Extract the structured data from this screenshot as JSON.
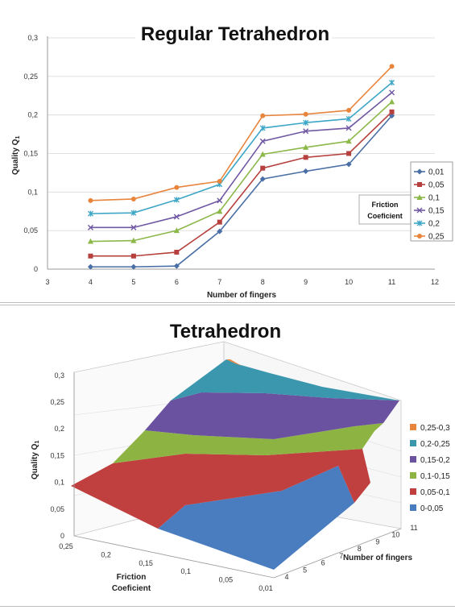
{
  "chart_data": [
    {
      "type": "line",
      "title": "Regular Tetrahedron",
      "xlabel": "Number of fingers",
      "ylabel": "Quality Q",
      "ylabel_sub": "1",
      "xlim": [
        3,
        12
      ],
      "ylim": [
        0,
        0.3
      ],
      "xticks": [
        "3",
        "4",
        "5",
        "6",
        "7",
        "8",
        "9",
        "10",
        "11",
        "12"
      ],
      "yticks": [
        "0",
        "0,05",
        "0,1",
        "0,15",
        "0,2",
        "0,25",
        "0,3"
      ],
      "x": [
        4,
        5,
        6,
        7,
        8,
        9,
        10,
        11
      ],
      "legend_title": [
        "Friction",
        "Coeficient"
      ],
      "legend_position": "right",
      "series": [
        {
          "name": "0,01",
          "color": "#4a6fa5",
          "marker": "diamond",
          "values": [
            0.003,
            0.003,
            0.004,
            0.049,
            0.117,
            0.127,
            0.136,
            0.199
          ]
        },
        {
          "name": "0,05",
          "color": "#b5403d",
          "marker": "square",
          "values": [
            0.017,
            0.017,
            0.022,
            0.061,
            0.131,
            0.145,
            0.15,
            0.204
          ]
        },
        {
          "name": "0,1",
          "color": "#8cb84a",
          "marker": "triangle",
          "values": [
            0.036,
            0.037,
            0.05,
            0.075,
            0.149,
            0.158,
            0.166,
            0.217
          ]
        },
        {
          "name": "0,15",
          "color": "#7058a3",
          "marker": "x",
          "values": [
            0.054,
            0.054,
            0.068,
            0.089,
            0.166,
            0.179,
            0.183,
            0.229
          ]
        },
        {
          "name": "0,2",
          "color": "#3ea6c6",
          "marker": "star",
          "values": [
            0.072,
            0.073,
            0.09,
            0.11,
            0.183,
            0.19,
            0.195,
            0.242
          ]
        },
        {
          "name": "0,25",
          "color": "#e8853d",
          "marker": "circle",
          "values": [
            0.089,
            0.091,
            0.106,
            0.114,
            0.199,
            0.201,
            0.206,
            0.263
          ]
        }
      ]
    },
    {
      "type": "surface",
      "title": "Tetrahedron",
      "zlabel": "Quality Q",
      "zlabel_sub": "1",
      "xlabel": [
        "Friction",
        "Coeficient"
      ],
      "ylabel": "Number of fingers",
      "zticks": [
        "0",
        "0,05",
        "0,1",
        "0,15",
        "0,2",
        "0,25",
        "0,3"
      ],
      "friction_ticks": [
        "0,25",
        "0,2",
        "0,15",
        "0,1",
        "0,05",
        "0,01"
      ],
      "finger_ticks": [
        "4",
        "5",
        "6",
        "7",
        "8",
        "9",
        "10",
        "11"
      ],
      "legend_position": "right",
      "bands": [
        {
          "name": "0,25-0,3",
          "color": "#e8853d"
        },
        {
          "name": "0,2-0,25",
          "color": "#3a97ad"
        },
        {
          "name": "0,15-0,2",
          "color": "#6b52a0"
        },
        {
          "name": "0,1-0,15",
          "color": "#8db443"
        },
        {
          "name": "0,05-0,1",
          "color": "#c0403f"
        },
        {
          "name": "0-0,05",
          "color": "#4a7dbf"
        }
      ]
    }
  ]
}
